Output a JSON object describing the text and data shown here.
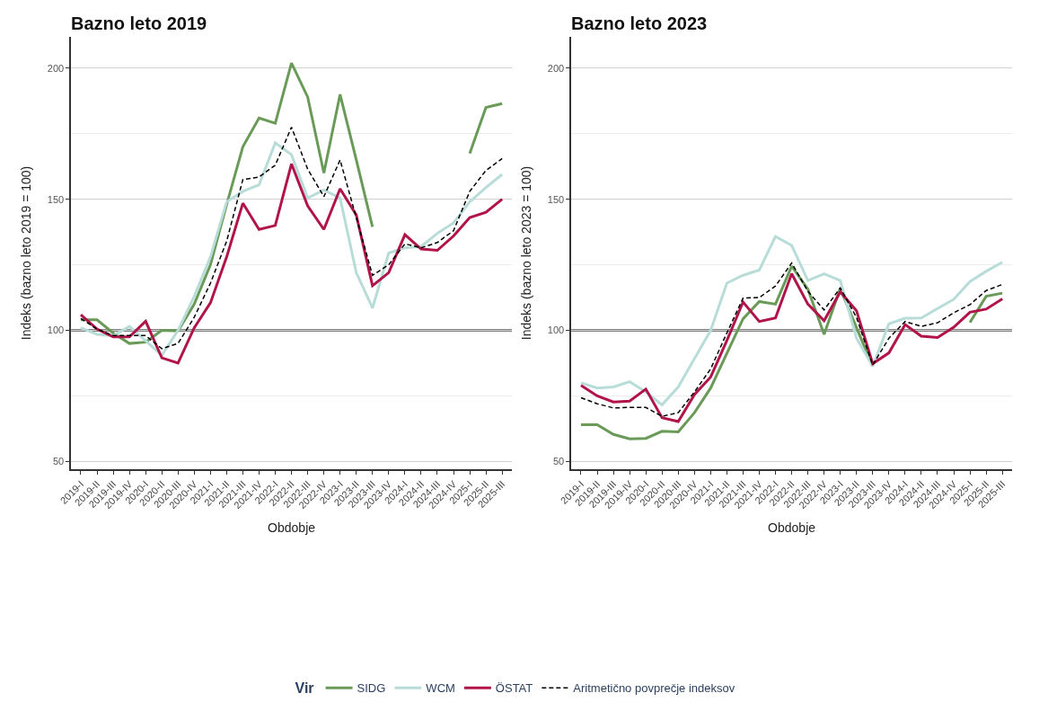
{
  "chart_data": [
    {
      "type": "line",
      "title": "Bazno leto 2019",
      "xlabel": "Obdobje",
      "ylabel": "Indeks (bazno leto 2019 = 100)",
      "legend_title": "Vir",
      "legend": "bottom",
      "grid": "y",
      "categories": [
        "2019-I",
        "2019-II",
        "2019-III",
        "2019-IV",
        "2020-I",
        "2020-II",
        "2020-III",
        "2020-IV",
        "2021-I",
        "2021-II",
        "2021-III",
        "2021-IV",
        "2022-I",
        "2022-II",
        "2022-III",
        "2022-IV",
        "2023-I",
        "2023-II",
        "2023-III",
        "2023-IV",
        "2024-I",
        "2024-II",
        "2024-III",
        "2024-IV",
        "2025-I",
        "2025-II",
        "2025-III"
      ],
      "ylim": [
        47,
        212
      ],
      "yticks": [
        50,
        100,
        150,
        200
      ],
      "ref_lines": [
        {
          "axis": "y",
          "value": 100,
          "color": "#808080"
        }
      ],
      "series": [
        {
          "name": "SIDG",
          "color": "#6a9a58",
          "line_style": "solid",
          "values": [
            104,
            104,
            99,
            95,
            95.5,
            100,
            99.8,
            110,
            125,
            148,
            170,
            181,
            179,
            202,
            189,
            160,
            190,
            165,
            139.5,
            null,
            null,
            null,
            null,
            null,
            167.5,
            185,
            186.5
          ]
        },
        {
          "name": "WCM",
          "color": "#b8dcd8",
          "line_style": "solid",
          "values": [
            101,
            98.5,
            98,
            101.5,
            96,
            90.5,
            100,
            113,
            128,
            149,
            153,
            155.5,
            171.5,
            167,
            150.5,
            153.5,
            150.5,
            122,
            108.5,
            129.5,
            131.5,
            132,
            137,
            141,
            149,
            154.5,
            159.5
          ]
        },
        {
          "name": "ÖSTAT",
          "color": "#b0144a",
          "line_style": "solid",
          "values": [
            106,
            100.5,
            97.5,
            97.5,
            103.5,
            89.5,
            87.5,
            101,
            110.5,
            128,
            148.5,
            138.5,
            140,
            163.5,
            147.5,
            138.5,
            154,
            144,
            117,
            122,
            136.5,
            131,
            130.5,
            136,
            143,
            145,
            150
          ]
        },
        {
          "name": "Aritmetično povprečje indeksov",
          "color": "#000000",
          "line_style": "dashed",
          "values": [
            104.5,
            100.5,
            98,
            98,
            98,
            93,
            95,
            105,
            118,
            134,
            157.5,
            158.5,
            163,
            177.5,
            161.5,
            151,
            165,
            143,
            121,
            125,
            133,
            131.5,
            133.5,
            138,
            153,
            161,
            165.5
          ]
        }
      ]
    },
    {
      "type": "line",
      "title": "Bazno leto 2023",
      "xlabel": "Obdobje",
      "ylabel": "Indeks (bazno leto 2023 = 100)",
      "grid": "y",
      "categories": [
        "2019-I",
        "2019-II",
        "2019-III",
        "2019-IV",
        "2020-I",
        "2020-II",
        "2020-III",
        "2020-IV",
        "2021-I",
        "2021-II",
        "2021-III",
        "2021-IV",
        "2022-I",
        "2022-II",
        "2022-III",
        "2022-IV",
        "2023-I",
        "2023-II",
        "2023-III",
        "2023-IV",
        "2024-I",
        "2024-II",
        "2024-III",
        "2024-IV",
        "2025-I",
        "2025-II",
        "2025-III"
      ],
      "ylim": [
        47,
        212
      ],
      "yticks": [
        50,
        100,
        150,
        200
      ],
      "ref_lines": [
        {
          "axis": "y",
          "value": 100,
          "color": "#808080"
        }
      ],
      "series": [
        {
          "color": "#6a9a58",
          "line_style": "solid",
          "values": [
            64,
            64,
            60.3,
            58.6,
            58.8,
            61.5,
            61.3,
            68.6,
            78,
            91.2,
            104.4,
            111,
            110,
            124.5,
            115.7,
            98.5,
            116,
            101,
            86.3,
            null,
            null,
            null,
            null,
            null,
            103,
            113,
            114.2
          ]
        },
        {
          "color": "#b8dcd8",
          "line_style": "solid",
          "values": [
            80,
            78,
            78.4,
            80.4,
            76.5,
            71.6,
            78.4,
            89.2,
            100,
            118,
            121,
            123,
            135.8,
            132.4,
            119,
            121.6,
            119,
            97,
            86.3,
            102.5,
            104.6,
            104.7,
            108.3,
            111.8,
            118.6,
            122.5,
            126
          ]
        },
        {
          "color": "#b0144a",
          "line_style": "solid",
          "values": [
            79,
            75,
            72.7,
            73,
            77.6,
            66.7,
            65.2,
            75.5,
            82.2,
            96.1,
            110.8,
            103.4,
            104.7,
            121.6,
            110,
            103.7,
            114.7,
            107.5,
            87.3,
            91.4,
            102.2,
            97.8,
            97.3,
            101.2,
            106.9,
            108.1,
            112
          ]
        },
        {
          "color": "#000000",
          "line_style": "dashed",
          "values": [
            74.3,
            72,
            70.4,
            70.6,
            70.6,
            67.2,
            68.6,
            76.5,
            85.3,
            99,
            112.3,
            112.5,
            116.9,
            125.7,
            114.9,
            107.8,
            116.2,
            104.9,
            86.8,
            97,
            103.4,
            101.5,
            102.9,
            106.7,
            109.8,
            115.2,
            117.5
          ]
        }
      ]
    }
  ]
}
